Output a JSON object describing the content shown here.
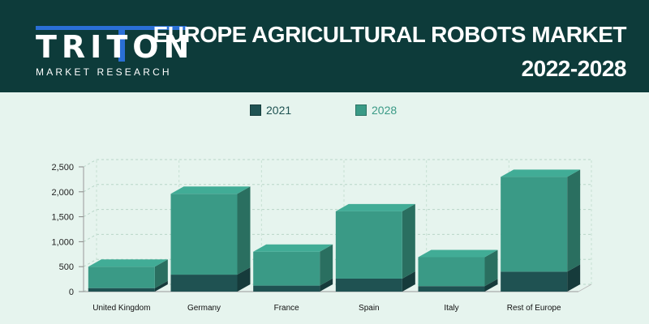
{
  "header": {
    "logo_text": "TRITON",
    "logo_subtitle": "MARKET RESEARCH",
    "title_line1": "EUROPE AGRICULTURAL ROBOTS MARKET",
    "title_line2": "2022-2028",
    "background": "#0d3b3a",
    "logo_accent": "#2a6fd6"
  },
  "chart_data": {
    "type": "bar",
    "stacked": true,
    "three_d": true,
    "categories": [
      "United Kingdom",
      "Germany",
      "France",
      "Spain",
      "Italy",
      "Rest of Europe"
    ],
    "series": [
      {
        "name": "2021",
        "color": "#1f5252",
        "values": [
          70,
          340,
          120,
          260,
          110,
          400
        ]
      },
      {
        "name": "2028",
        "color": "#3a9a86",
        "values": [
          430,
          1620,
          680,
          1350,
          580,
          1900
        ]
      }
    ],
    "ylim": [
      0,
      2500
    ],
    "yticks": [
      "0",
      "500",
      "1,000",
      "1,500",
      "2,000",
      "2,500"
    ],
    "grid": true,
    "legend_position": "top-center"
  }
}
